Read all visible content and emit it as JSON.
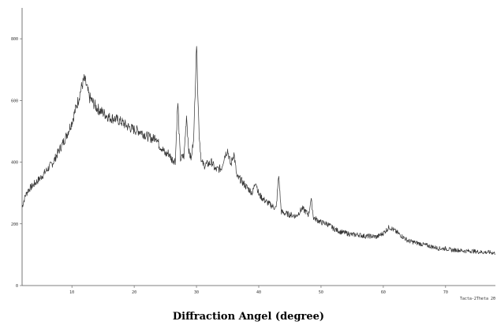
{
  "chart_data": {
    "type": "line",
    "title": "",
    "xlabel": "Diffraction Angel (degree)",
    "ylabel": "",
    "corner_label": "Tacta-2Theta 2θ",
    "xlim": [
      2,
      78
    ],
    "ylim": [
      0,
      900
    ],
    "x_ticks": [
      10,
      20,
      30,
      40,
      50,
      60,
      70
    ],
    "y_ticks": [
      0,
      200,
      400,
      600,
      800
    ],
    "grid": false,
    "legend": "none",
    "line_color": "#333333",
    "series": [
      {
        "x": [
          2,
          2.5,
          3,
          4,
          5,
          6,
          7,
          8,
          9,
          10,
          11,
          11.5,
          12,
          12.3,
          12.8,
          13.5,
          14,
          15,
          16,
          17,
          18,
          19,
          20,
          21,
          22,
          23,
          23.5,
          24,
          24.5,
          25,
          25.5,
          26,
          26.6,
          27,
          27.4,
          28,
          28.4,
          28.8,
          29.2,
          29.6,
          30,
          30.4,
          30.8,
          31.2,
          32,
          32.5,
          33,
          34,
          34.5,
          35,
          35.5,
          36,
          36.5,
          37,
          38,
          39,
          39.5,
          40,
          40.5,
          41,
          42,
          42.8,
          43.2,
          43.6,
          44,
          45,
          46,
          47,
          47.5,
          48,
          48.4,
          48.8,
          49.2,
          50,
          51,
          52,
          53,
          54,
          55,
          56,
          57,
          58,
          59,
          60,
          61,
          62,
          63,
          64,
          65,
          66,
          67,
          68,
          69,
          70,
          71,
          72,
          73,
          74,
          75,
          76,
          77,
          78
        ],
        "values": [
          255,
          290,
          310,
          330,
          350,
          375,
          400,
          440,
          480,
          530,
          600,
          640,
          670,
          650,
          610,
          590,
          575,
          560,
          545,
          540,
          530,
          515,
          505,
          500,
          485,
          475,
          485,
          455,
          445,
          425,
          430,
          410,
          405,
          600,
          410,
          420,
          550,
          430,
          410,
          500,
          790,
          500,
          400,
          390,
          395,
          400,
          375,
          380,
          420,
          440,
          390,
          430,
          350,
          345,
          320,
          300,
          340,
          295,
          285,
          275,
          260,
          250,
          360,
          240,
          235,
          230,
          225,
          250,
          240,
          230,
          280,
          220,
          215,
          205,
          200,
          185,
          175,
          170,
          165,
          165,
          160,
          160,
          158,
          170,
          190,
          175,
          160,
          145,
          140,
          135,
          130,
          125,
          120,
          120,
          115,
          115,
          112,
          112,
          110,
          108,
          108,
          105
        ]
      }
    ]
  }
}
